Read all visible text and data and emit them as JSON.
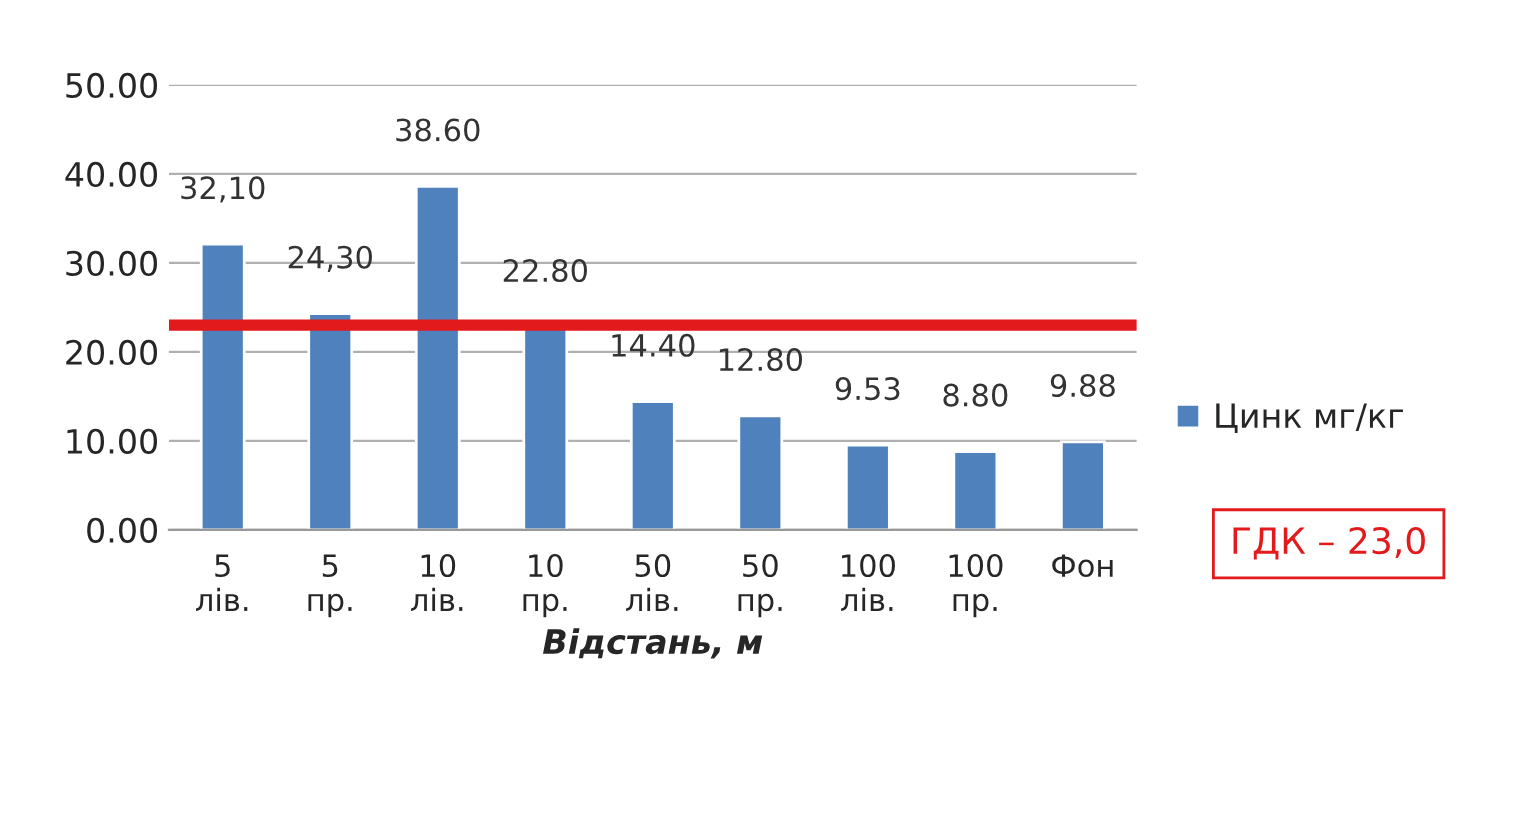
{
  "chart_data": {
    "type": "bar",
    "categories": [
      "5\nлів.",
      "5\nпр.",
      "10\nлів.",
      "10\nпр.",
      "50\nлів.",
      "50\nпр.",
      "100\nлів.",
      "100\nпр.",
      "Фон"
    ],
    "series": [
      {
        "name": "Цинк мг/кг",
        "color": "#4f81bd",
        "values": [
          32.1,
          24.3,
          38.6,
          22.8,
          14.4,
          12.8,
          9.53,
          8.8,
          9.88
        ],
        "value_labels": [
          "32,10",
          "24,30",
          "38.60",
          "22.80",
          "14.40",
          "12.80",
          "9.53",
          "8.80",
          "9.88"
        ]
      }
    ],
    "xlabel": "Відстань, м",
    "ylim": [
      0,
      50
    ],
    "yticks": [
      {
        "value": 0,
        "label": "0.00"
      },
      {
        "value": 10,
        "label": "10.00"
      },
      {
        "value": 20,
        "label": "20.00"
      },
      {
        "value": 30,
        "label": "30.00"
      },
      {
        "value": 40,
        "label": "40.00"
      },
      {
        "value": 50,
        "label": "50.00"
      }
    ],
    "ref_lines": [
      {
        "axis": "y",
        "value": 23,
        "label": "ГДК – 23,0",
        "color": "#e31a1c"
      }
    ],
    "grid": "y",
    "legend": "right"
  }
}
